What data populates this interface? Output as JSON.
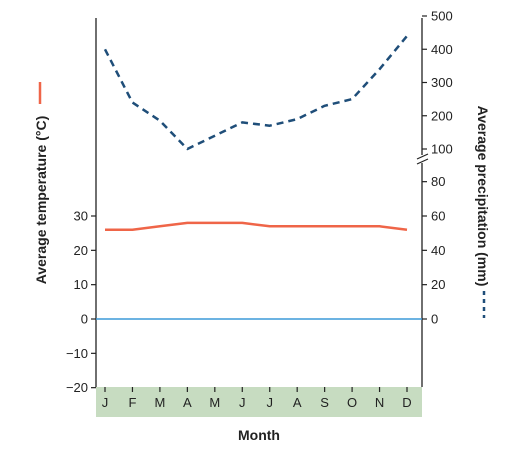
{
  "chart_data": {
    "type": "line",
    "xlabel": "Month",
    "categories": [
      "J",
      "F",
      "M",
      "A",
      "M",
      "J",
      "J",
      "A",
      "S",
      "O",
      "N",
      "D"
    ],
    "left_axis": {
      "label": "Average temperature (°C)",
      "ticks": [
        30,
        20,
        10,
        0,
        -10,
        -20
      ],
      "tick_labels": [
        "30",
        "20",
        "10",
        "0",
        "−10",
        "−20"
      ],
      "ylim": [
        -20,
        30
      ]
    },
    "right_axis": {
      "label": "Average precipitation (mm)",
      "ticks_lower": [
        "0",
        "20",
        "40",
        "60",
        "80"
      ],
      "ticks_upper": [
        "100",
        "200",
        "300",
        "400",
        "500"
      ],
      "lower_range": [
        0,
        80
      ],
      "upper_range": [
        100,
        500
      ],
      "broken": true
    },
    "series": [
      {
        "axis": "left",
        "color": "#ef6548",
        "style": "solid",
        "values": [
          26,
          26,
          27,
          28,
          28,
          28,
          27,
          27,
          27,
          27,
          27,
          26
        ]
      },
      {
        "axis": "right",
        "color": "#1f4e79",
        "style": "dashed",
        "values": [
          400,
          240,
          185,
          100,
          140,
          180,
          170,
          190,
          230,
          250,
          340,
          440
        ]
      }
    ],
    "zero_line_color": "#3b9ad9",
    "month_band_color": "#c7dcc1"
  }
}
